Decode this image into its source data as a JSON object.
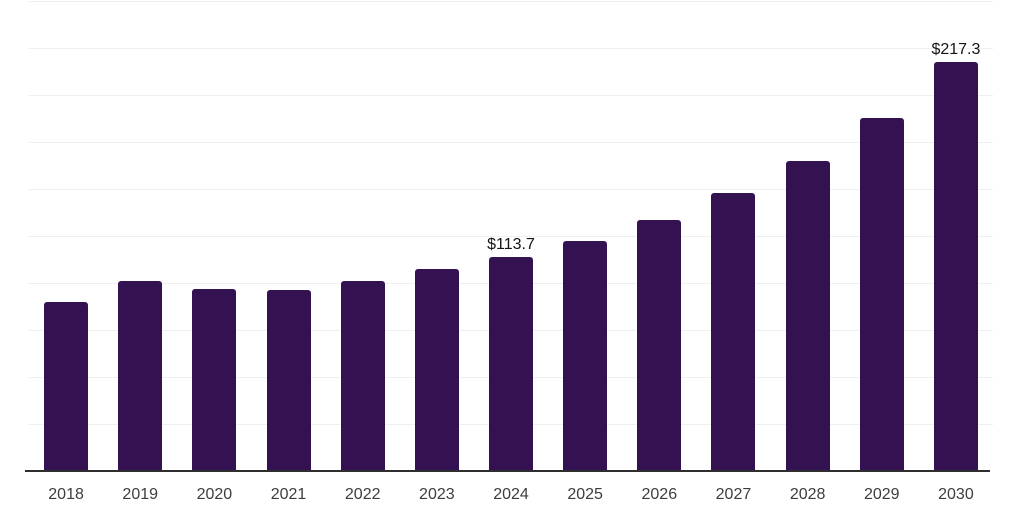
{
  "chart_data": {
    "type": "bar",
    "title": "",
    "xlabel": "",
    "ylabel": "",
    "categories": [
      "2018",
      "2019",
      "2020",
      "2021",
      "2022",
      "2023",
      "2024",
      "2025",
      "2026",
      "2027",
      "2028",
      "2029",
      "2030"
    ],
    "values": [
      90.0,
      101.1,
      96.6,
      96.4,
      101.1,
      107.4,
      113.7,
      122.5,
      133.5,
      147.7,
      165.1,
      187.9,
      217.3
    ],
    "data_labels": [
      "",
      "",
      "",
      "",
      "",
      "",
      "$113.7",
      "",
      "",
      "",
      "",
      "",
      "$217.3"
    ],
    "ylim": [
      0,
      250
    ],
    "grid_step": 25,
    "grid": true,
    "legend_position": "none",
    "colors": {
      "bar": "#341151",
      "axis_line": "#2e2e2e",
      "gridline": "#efefef",
      "tick_label": "#3d3d3d",
      "data_label": "#141414",
      "background": "#ffffff"
    }
  }
}
